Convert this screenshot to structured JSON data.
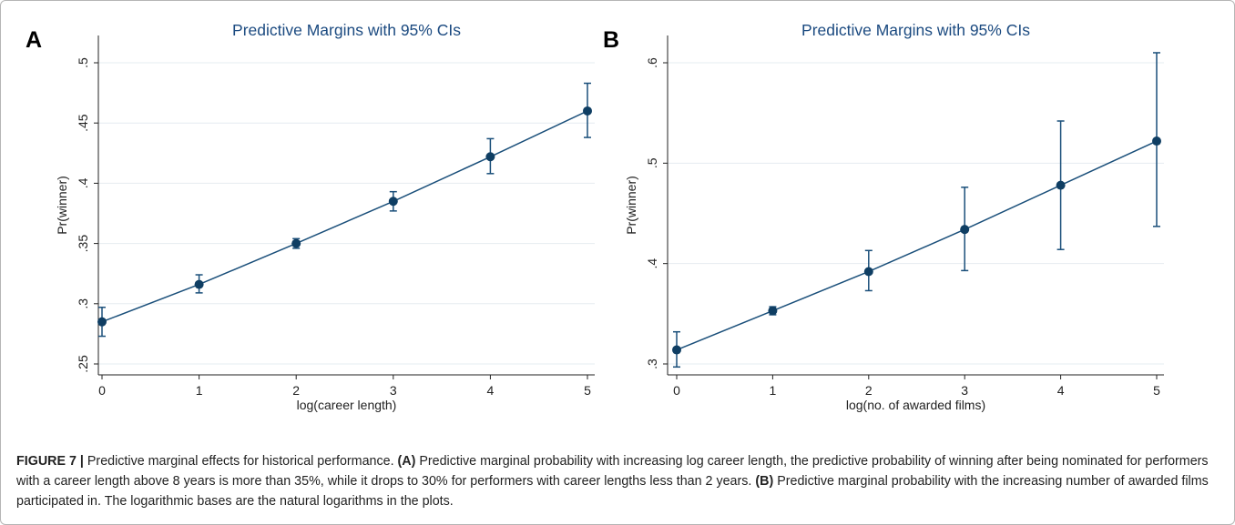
{
  "figure": {
    "caption": {
      "label": "FIGURE 7 |",
      "intro": " Predictive marginal effects for historical performance. ",
      "a_label": "(A)",
      "a_text": " Predictive marginal probability with increasing log career length, the predictive probability of winning after being nominated for performers with a career length above 8 years is more than 35%, while it drops to 30% for performers with career lengths less than 2 years. ",
      "b_label": "(B)",
      "b_text": " Predictive marginal probability with the increasing number of awarded films participated in. The logarithmic bases are the natural logarithms in the plots."
    }
  },
  "chart_data": [
    {
      "panel": "A",
      "type": "line",
      "title": "Predictive Margins with 95% CIs",
      "xlabel": "log(career length)",
      "ylabel": "Pr(winner)",
      "x": [
        0,
        1,
        2,
        3,
        4,
        5
      ],
      "xticks": [
        "0",
        "1",
        "2",
        "3",
        "4",
        "5"
      ],
      "yticks": [
        ".25",
        ".3",
        ".35",
        ".4",
        ".45",
        ".5"
      ],
      "ytick_values": [
        0.25,
        0.3,
        0.35,
        0.4,
        0.45,
        0.5
      ],
      "xlim": [
        0,
        5
      ],
      "ylim": [
        0.25,
        0.5
      ],
      "grid": true,
      "series": [
        {
          "values": [
            0.285,
            0.316,
            0.35,
            0.385,
            0.422,
            0.46
          ],
          "ci_low": [
            0.273,
            0.309,
            0.346,
            0.377,
            0.408,
            0.438
          ],
          "ci_high": [
            0.297,
            0.324,
            0.354,
            0.393,
            0.437,
            0.483
          ]
        }
      ]
    },
    {
      "panel": "B",
      "type": "line",
      "title": "Predictive Margins with 95% CIs",
      "xlabel": "log(no. of awarded films)",
      "ylabel": "Pr(winner)",
      "x": [
        0,
        1,
        2,
        3,
        4,
        5
      ],
      "xticks": [
        "0",
        "1",
        "2",
        "3",
        "4",
        "5"
      ],
      "yticks": [
        ".3",
        ".4",
        ".5",
        ".6"
      ],
      "ytick_values": [
        0.3,
        0.4,
        0.5,
        0.6
      ],
      "xlim": [
        0,
        5
      ],
      "ylim": [
        0.3,
        0.6
      ],
      "grid": true,
      "series": [
        {
          "values": [
            0.314,
            0.353,
            0.392,
            0.434,
            0.478,
            0.522
          ],
          "ci_low": [
            0.297,
            0.349,
            0.373,
            0.393,
            0.414,
            0.437
          ],
          "ci_high": [
            0.332,
            0.357,
            0.413,
            0.476,
            0.542,
            0.61
          ]
        }
      ]
    }
  ]
}
